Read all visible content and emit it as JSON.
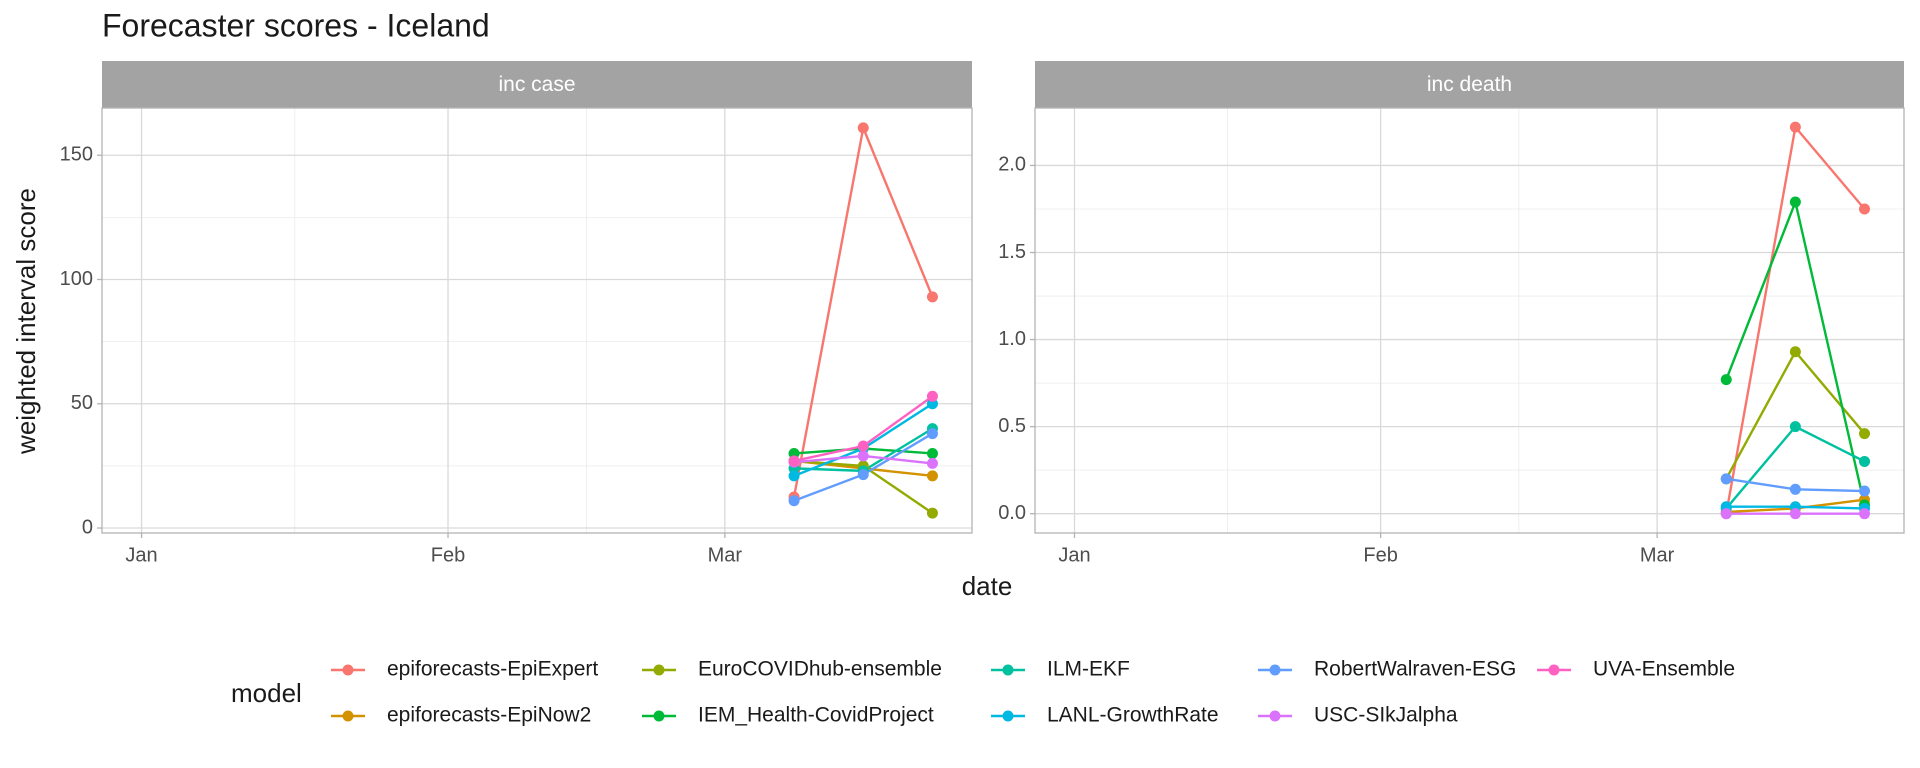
{
  "chart_data": {
    "type": "line",
    "title": "Forecaster scores - Iceland",
    "xlabel": "date",
    "ylabel": "weighted interval score",
    "legend_title": "model",
    "x": [
      66,
      73,
      80
    ],
    "xlim": [
      -4,
      84
    ],
    "xticks": [
      {
        "value": 0,
        "label": "Jan"
      },
      {
        "value": 31,
        "label": "Feb"
      },
      {
        "value": 59,
        "label": "Mar"
      }
    ],
    "grid": true,
    "facets": [
      {
        "title": "inc case",
        "ylim": [
          -2,
          169
        ],
        "yticks": [
          0,
          50,
          100,
          150
        ]
      },
      {
        "title": "inc death",
        "ylim": [
          -0.111,
          2.33
        ],
        "yticks": [
          {
            "value": 0,
            "label": "0.0"
          },
          {
            "value": 0.5,
            "label": "0.5"
          },
          {
            "value": 1,
            "label": "1.0"
          },
          {
            "value": 1.5,
            "label": "1.5"
          },
          {
            "value": 2,
            "label": "2.0"
          }
        ]
      }
    ],
    "series": [
      {
        "name": "epiforecasts-EpiExpert",
        "color": "#F8766D",
        "values": [
          [
            12.5,
            161,
            93
          ],
          [
            0,
            2.22,
            1.75
          ]
        ]
      },
      {
        "name": "epiforecasts-EpiNow2",
        "color": "#D39200",
        "values": [
          [
            27,
            24,
            21
          ],
          [
            0.01,
            0.03,
            0.08
          ]
        ]
      },
      {
        "name": "EuroCOVIDhub-ensemble",
        "color": "#93AA00",
        "values": [
          [
            27,
            25,
            6
          ],
          [
            0.2,
            0.93,
            0.46
          ]
        ]
      },
      {
        "name": "IEM_Health-CovidProject",
        "color": "#00BA38",
        "values": [
          [
            30,
            32,
            30
          ],
          [
            0.77,
            1.79,
            0.05
          ]
        ]
      },
      {
        "name": "ILM-EKF",
        "color": "#00C19F",
        "values": [
          [
            24,
            23,
            40
          ],
          [
            0.03,
            0.5,
            0.3
          ]
        ]
      },
      {
        "name": "LANL-GrowthRate",
        "color": "#00B9E3",
        "values": [
          [
            21,
            32,
            50
          ],
          [
            0.04,
            0.04,
            0.03
          ]
        ]
      },
      {
        "name": "RobertWalraven-ESG",
        "color": "#619CFF",
        "values": [
          [
            11,
            21.5,
            38
          ],
          [
            0.2,
            0.14,
            0.13
          ]
        ]
      },
      {
        "name": "USC-SIkJalpha",
        "color": "#DB72FB",
        "values": [
          [
            26.5,
            29,
            26
          ],
          [
            0,
            0,
            0
          ]
        ]
      },
      {
        "name": "UVA-Ensemble",
        "color": "#FF61C3",
        "values": [
          [
            27,
            33,
            53
          ],
          [
            null,
            null,
            null
          ]
        ]
      }
    ]
  }
}
